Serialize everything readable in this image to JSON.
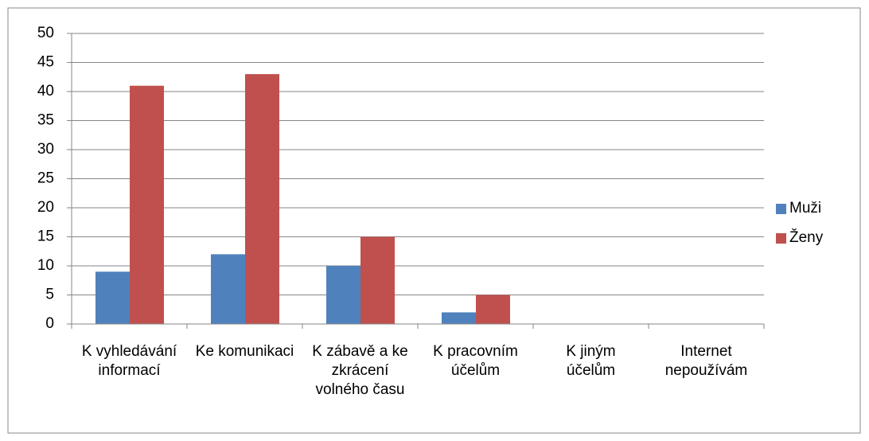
{
  "chart_data": {
    "type": "bar",
    "categories": [
      "K vyhledávání informací",
      "Ke komunikaci",
      "K zábavě a ke zkrácení volného času",
      "K pracovním účelům",
      "K jiným účelům",
      "Internet nepoužívám"
    ],
    "series": [
      {
        "name": "Muži",
        "color": "#4f81bd",
        "values": [
          9,
          12,
          10,
          2,
          0,
          0
        ]
      },
      {
        "name": "Ženy",
        "color": "#c0504d",
        "values": [
          41,
          43,
          15,
          5,
          0,
          0
        ]
      }
    ],
    "ylim": [
      0,
      50
    ],
    "yticks": [
      0,
      5,
      10,
      15,
      20,
      25,
      30,
      35,
      40,
      45,
      50
    ],
    "grid": true,
    "legend": "right"
  }
}
